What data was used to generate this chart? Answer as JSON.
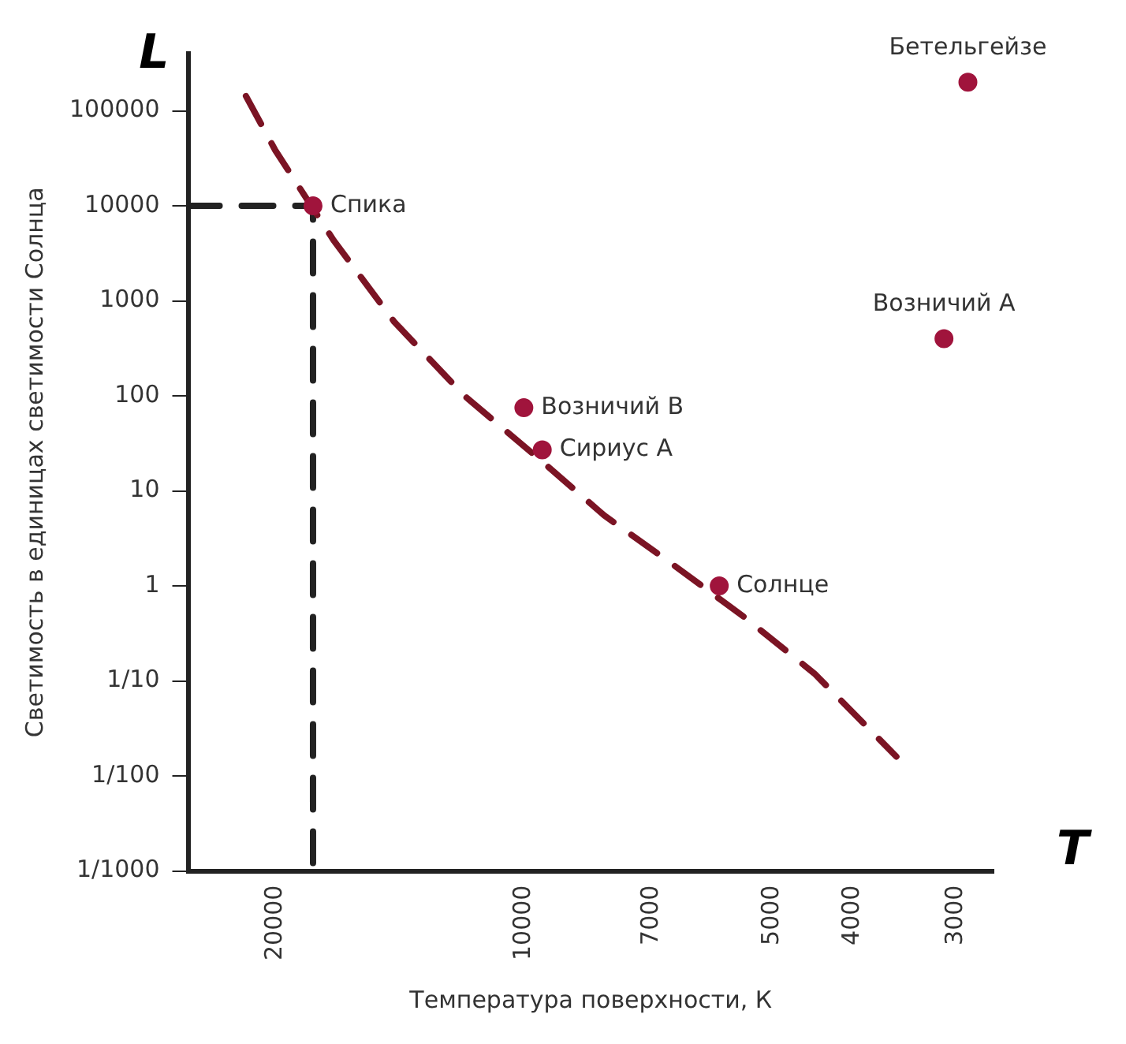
{
  "chart_data": {
    "type": "scatter",
    "xlabel": "Температура поверхности, К",
    "ylabel": "Светимость в единицах светимости Солнца",
    "annotations": [
      "L",
      "T"
    ],
    "log": "xy",
    "xlim": [
      25500,
      2700
    ],
    "xticks": [
      20000,
      10000,
      7000,
      5000,
      4000,
      3000
    ],
    "ylim": [
      0.001,
      400000
    ],
    "yticks": [
      100000,
      10000,
      1000,
      100,
      10,
      1,
      {
        "value": 0.1,
        "label": "1/10"
      },
      {
        "value": 0.01,
        "label": "1/100"
      },
      {
        "value": 0.001,
        "label": "1/1000"
      }
    ],
    "grid": false,
    "legend": false,
    "marker": "circle",
    "series": [
      {
        "type": "line",
        "color": "#7b1424",
        "line_style": "dashed",
        "marker": "none",
        "x": [
          21700,
          20000,
          17000,
          14350,
          11800,
          9480,
          7990,
          6730,
          5410,
          4450,
          3540
        ],
        "values": [
          143000,
          38500,
          4350,
          600,
          100,
          20,
          5.5,
          1.9,
          0.47,
          0.12,
          0.016
        ]
      },
      {
        "type": "line",
        "color": "#222222",
        "line_style": "dashed",
        "marker": "none",
        "x": [
          25500,
          18000,
          18000
        ],
        "values": [
          10000,
          10000,
          0.001
        ]
      },
      {
        "name": "Спика",
        "color": "#a0143c",
        "x": [
          18000
        ],
        "values": [
          10000
        ]
      },
      {
        "name": "Возничий В",
        "color": "#a0143c",
        "x": [
          10000
        ],
        "values": [
          75
        ]
      },
      {
        "name": "Сириус А",
        "color": "#a0143c",
        "x": [
          9500
        ],
        "values": [
          27
        ]
      },
      {
        "name": "Солнце",
        "color": "#a0143c",
        "x": [
          5800
        ],
        "values": [
          1
        ]
      },
      {
        "name": "Возничий А",
        "color": "#a0143c",
        "x": [
          3100
        ],
        "values": [
          400
        ]
      },
      {
        "name": "Бетельгейзе",
        "color": "#a0143c",
        "x": [
          2900
        ],
        "values": [
          200000
        ]
      }
    ]
  }
}
